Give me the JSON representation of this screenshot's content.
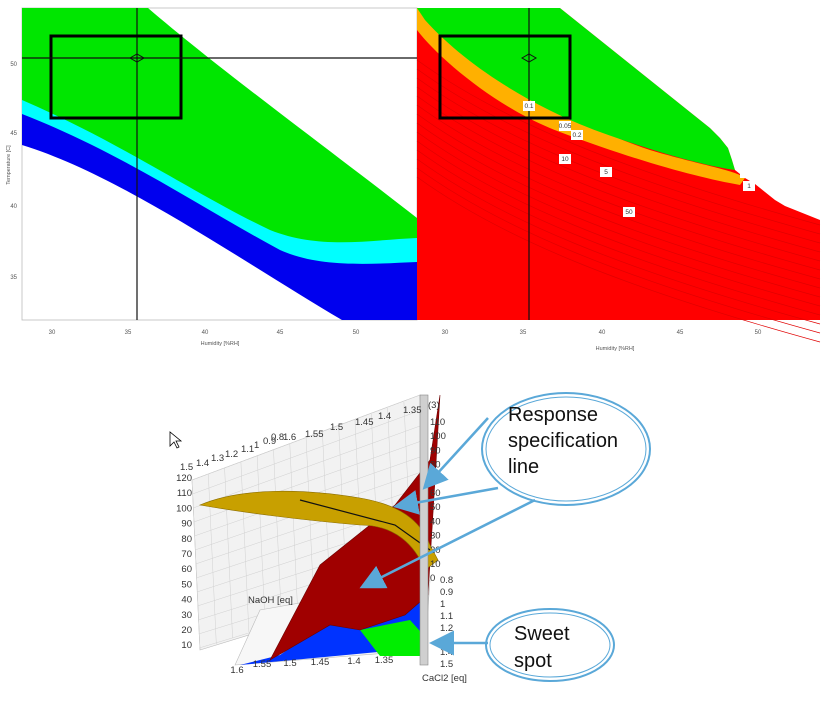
{
  "top_left_plot": {
    "xlabel": "Humidity [%RH]",
    "ylabel": "Temperature [C]",
    "x_ticks": [
      "30",
      "35",
      "40",
      "45",
      "50"
    ],
    "y_ticks": [
      "35",
      "40",
      "45",
      "50"
    ],
    "colors": {
      "green": "#00e600",
      "cyan": "#00ffff",
      "blue": "#0000ee"
    }
  },
  "top_right_plot": {
    "xlabel": "Humidity [%RH]",
    "x_ticks": [
      "30",
      "35",
      "40",
      "45",
      "50"
    ],
    "contour_labels": [
      "0.1",
      "0.05",
      "0.2",
      "10",
      "5",
      "1",
      "50"
    ],
    "colors": {
      "green": "#00e600",
      "red": "#ff0000",
      "orange": "#ffa500"
    }
  },
  "surface_plot": {
    "z_ticks_left": [
      "120",
      "110",
      "100",
      "90",
      "80",
      "70",
      "60",
      "50",
      "40",
      "30",
      "20",
      "10"
    ],
    "z_ticks_right": [
      "110",
      "100",
      "90",
      "80",
      "70",
      "60",
      "50",
      "40",
      "30",
      "20",
      "10",
      "0"
    ],
    "back_row_labels": [
      "1.5",
      "1.4",
      "1.3",
      "1.2",
      "1.1",
      "1",
      "0.9",
      "0.8",
      "1.6",
      "1.55",
      "1.5",
      "1.45",
      "1.4",
      "1.35"
    ],
    "front_row_labels": [
      "1.6",
      "1.55",
      "1.5",
      "1.45",
      "1.4",
      "1.35"
    ],
    "right_row_labels": [
      "0.8",
      "0.9",
      "1",
      "1.1",
      "1.2",
      "1.3",
      "1.4",
      "1.5"
    ],
    "naoh_label": "NaOH [eq]",
    "cacl2_label": "CaCl2 [eq]",
    "top_right_tick": "(3)",
    "colors": {
      "gold": "#c8a000",
      "darkred": "#a00000",
      "blue": "#0033ff",
      "green": "#00ee00"
    }
  },
  "callouts": {
    "response": {
      "line1": "Response",
      "line2": "specification",
      "line3": "line"
    },
    "sweet": {
      "line1": "Sweet",
      "line2": "spot"
    },
    "color": "#5aa8d8"
  }
}
